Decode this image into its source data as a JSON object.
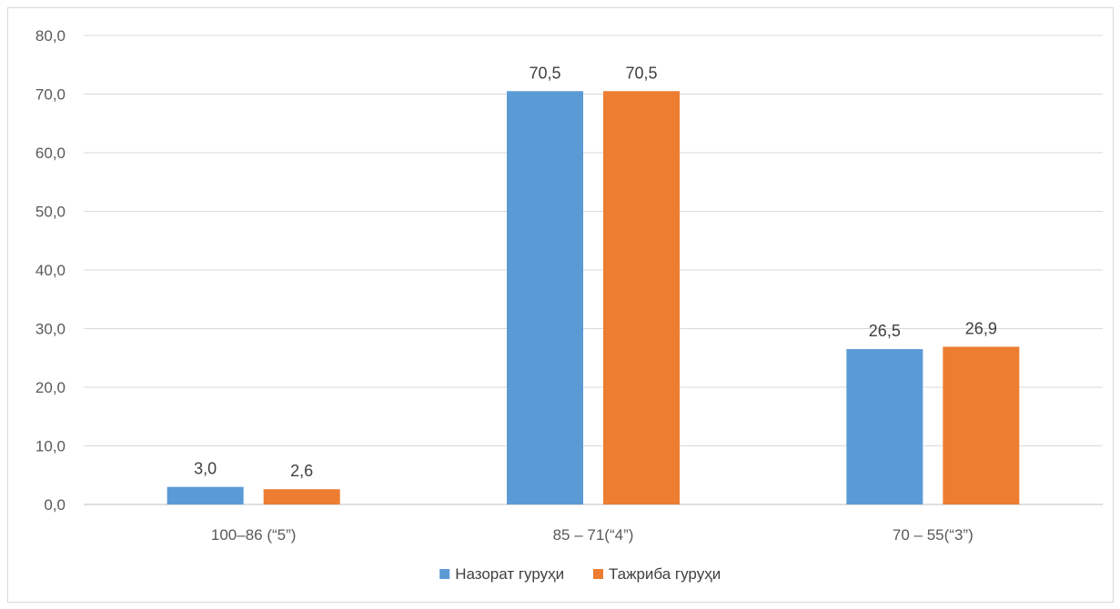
{
  "chart_data": {
    "type": "bar",
    "categories": [
      "100–86 (“5”)",
      "85 – 71(“4”)",
      "70 – 55(“3”)"
    ],
    "series": [
      {
        "name": "Назорат гуруҳи",
        "values": [
          3.0,
          70.5,
          26.5
        ],
        "labels": [
          "3,0",
          "70,5",
          "26,5"
        ],
        "color": "#5b9bd5"
      },
      {
        "name": "Тажриба гуруҳи",
        "values": [
          2.6,
          70.5,
          26.9
        ],
        "labels": [
          "2,6",
          "70,5",
          "26,9"
        ],
        "color": "#ed7d31"
      }
    ],
    "ylim": [
      0,
      80
    ],
    "yticks": [
      0,
      10,
      20,
      30,
      40,
      50,
      60,
      70,
      80
    ],
    "ytick_labels": [
      "0,0",
      "10,0",
      "20,0",
      "30,0",
      "40,0",
      "50,0",
      "60,0",
      "70,0",
      "80,0"
    ],
    "grid": true,
    "legend_position": "bottom",
    "xlabel": "",
    "ylabel": "",
    "title": ""
  }
}
